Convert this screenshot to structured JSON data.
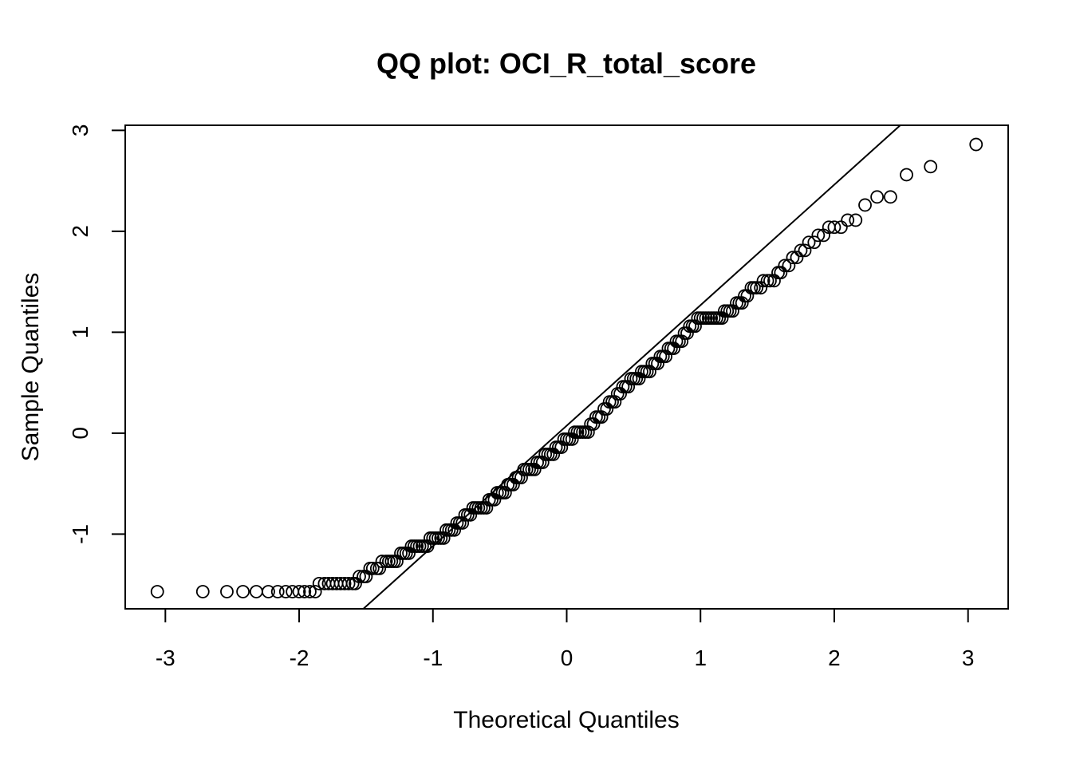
{
  "chart_data": {
    "type": "scatter",
    "title": "QQ plot: OCI_R_total_score",
    "xlabel": "Theoretical Quantiles",
    "ylabel": "Sample Quantiles",
    "xlim": [
      -3.3,
      3.3
    ],
    "ylim": [
      -1.74,
      3.05
    ],
    "xticks": [
      -3,
      -2,
      -1,
      0,
      1,
      2,
      3
    ],
    "yticks": [
      -1,
      0,
      1,
      2,
      3
    ],
    "grid": false,
    "legend": "none",
    "marker": "open-circle",
    "reference_line": {
      "slope": 1.1935,
      "intercept": 0.0743
    },
    "series": [
      {
        "points": [
          [
            -3.06,
            -1.57
          ],
          [
            -2.72,
            -1.57
          ],
          [
            -2.54,
            -1.57
          ],
          [
            -2.42,
            -1.57
          ],
          [
            -2.32,
            -1.57
          ],
          [
            -2.23,
            -1.57
          ],
          [
            -2.16,
            -1.57
          ],
          [
            -2.1,
            -1.57
          ],
          [
            -2.05,
            -1.57
          ],
          [
            -2.0,
            -1.57
          ],
          [
            -1.96,
            -1.57
          ],
          [
            -1.92,
            -1.57
          ],
          [
            -1.88,
            -1.57
          ],
          [
            -1.85,
            -1.49
          ],
          [
            -1.81,
            -1.49
          ],
          [
            -1.78,
            -1.49
          ],
          [
            -1.75,
            -1.49
          ],
          [
            -1.72,
            -1.49
          ],
          [
            -1.69,
            -1.49
          ],
          [
            -1.66,
            -1.49
          ],
          [
            -1.63,
            -1.49
          ],
          [
            -1.6,
            -1.49
          ],
          [
            -1.58,
            -1.49
          ],
          [
            -1.55,
            -1.42
          ],
          [
            -1.52,
            -1.42
          ],
          [
            -1.5,
            -1.42
          ],
          [
            -1.47,
            -1.34
          ],
          [
            -1.45,
            -1.34
          ],
          [
            -1.42,
            -1.34
          ],
          [
            -1.4,
            -1.34
          ],
          [
            -1.38,
            -1.27
          ],
          [
            -1.35,
            -1.27
          ],
          [
            -1.33,
            -1.27
          ],
          [
            -1.31,
            -1.27
          ],
          [
            -1.29,
            -1.27
          ],
          [
            -1.27,
            -1.27
          ],
          [
            -1.24,
            -1.19
          ],
          [
            -1.22,
            -1.19
          ],
          [
            -1.2,
            -1.19
          ],
          [
            -1.18,
            -1.19
          ],
          [
            -1.16,
            -1.12
          ],
          [
            -1.14,
            -1.12
          ],
          [
            -1.12,
            -1.12
          ],
          [
            -1.1,
            -1.12
          ],
          [
            -1.08,
            -1.12
          ],
          [
            -1.06,
            -1.12
          ],
          [
            -1.04,
            -1.12
          ],
          [
            -1.02,
            -1.04
          ],
          [
            -1.0,
            -1.04
          ],
          [
            -0.98,
            -1.04
          ],
          [
            -0.96,
            -1.04
          ],
          [
            -0.94,
            -1.04
          ],
          [
            -0.92,
            -1.04
          ],
          [
            -0.9,
            -0.96
          ],
          [
            -0.88,
            -0.96
          ],
          [
            -0.86,
            -0.96
          ],
          [
            -0.84,
            -0.96
          ],
          [
            -0.82,
            -0.89
          ],
          [
            -0.8,
            -0.89
          ],
          [
            -0.78,
            -0.89
          ],
          [
            -0.76,
            -0.81
          ],
          [
            -0.74,
            -0.81
          ],
          [
            -0.72,
            -0.81
          ],
          [
            -0.7,
            -0.74
          ],
          [
            -0.68,
            -0.74
          ],
          [
            -0.66,
            -0.74
          ],
          [
            -0.64,
            -0.74
          ],
          [
            -0.62,
            -0.74
          ],
          [
            -0.6,
            -0.74
          ],
          [
            -0.58,
            -0.66
          ],
          [
            -0.56,
            -0.66
          ],
          [
            -0.54,
            -0.66
          ],
          [
            -0.52,
            -0.59
          ],
          [
            -0.5,
            -0.59
          ],
          [
            -0.48,
            -0.59
          ],
          [
            -0.46,
            -0.59
          ],
          [
            -0.44,
            -0.51
          ],
          [
            -0.42,
            -0.51
          ],
          [
            -0.4,
            -0.51
          ],
          [
            -0.38,
            -0.44
          ],
          [
            -0.36,
            -0.44
          ],
          [
            -0.34,
            -0.44
          ],
          [
            -0.32,
            -0.36
          ],
          [
            -0.3,
            -0.36
          ],
          [
            -0.28,
            -0.36
          ],
          [
            -0.26,
            -0.36
          ],
          [
            -0.24,
            -0.36
          ],
          [
            -0.22,
            -0.29
          ],
          [
            -0.2,
            -0.29
          ],
          [
            -0.18,
            -0.29
          ],
          [
            -0.16,
            -0.21
          ],
          [
            -0.14,
            -0.21
          ],
          [
            -0.12,
            -0.21
          ],
          [
            -0.1,
            -0.21
          ],
          [
            -0.08,
            -0.14
          ],
          [
            -0.06,
            -0.14
          ],
          [
            -0.04,
            -0.14
          ],
          [
            -0.02,
            -0.06
          ],
          [
            0.0,
            -0.06
          ],
          [
            0.02,
            -0.06
          ],
          [
            0.04,
            -0.06
          ],
          [
            0.06,
            0.01
          ],
          [
            0.08,
            0.01
          ],
          [
            0.1,
            0.01
          ],
          [
            0.12,
            0.01
          ],
          [
            0.14,
            0.01
          ],
          [
            0.16,
            0.01
          ],
          [
            0.18,
            0.09
          ],
          [
            0.2,
            0.09
          ],
          [
            0.22,
            0.16
          ],
          [
            0.24,
            0.16
          ],
          [
            0.26,
            0.16
          ],
          [
            0.28,
            0.24
          ],
          [
            0.3,
            0.24
          ],
          [
            0.32,
            0.31
          ],
          [
            0.34,
            0.31
          ],
          [
            0.36,
            0.31
          ],
          [
            0.38,
            0.39
          ],
          [
            0.4,
            0.39
          ],
          [
            0.42,
            0.46
          ],
          [
            0.44,
            0.46
          ],
          [
            0.46,
            0.46
          ],
          [
            0.48,
            0.54
          ],
          [
            0.5,
            0.54
          ],
          [
            0.52,
            0.54
          ],
          [
            0.54,
            0.54
          ],
          [
            0.56,
            0.61
          ],
          [
            0.58,
            0.61
          ],
          [
            0.6,
            0.61
          ],
          [
            0.62,
            0.61
          ],
          [
            0.64,
            0.69
          ],
          [
            0.66,
            0.69
          ],
          [
            0.68,
            0.69
          ],
          [
            0.7,
            0.76
          ],
          [
            0.72,
            0.76
          ],
          [
            0.74,
            0.76
          ],
          [
            0.76,
            0.84
          ],
          [
            0.78,
            0.84
          ],
          [
            0.8,
            0.84
          ],
          [
            0.82,
            0.91
          ],
          [
            0.84,
            0.91
          ],
          [
            0.86,
            0.91
          ],
          [
            0.88,
            0.99
          ],
          [
            0.9,
            0.99
          ],
          [
            0.92,
            1.06
          ],
          [
            0.94,
            1.06
          ],
          [
            0.96,
            1.06
          ],
          [
            0.98,
            1.14
          ],
          [
            1.0,
            1.14
          ],
          [
            1.02,
            1.14
          ],
          [
            1.04,
            1.14
          ],
          [
            1.06,
            1.14
          ],
          [
            1.08,
            1.14
          ],
          [
            1.1,
            1.14
          ],
          [
            1.12,
            1.14
          ],
          [
            1.14,
            1.14
          ],
          [
            1.16,
            1.14
          ],
          [
            1.18,
            1.21
          ],
          [
            1.2,
            1.21
          ],
          [
            1.22,
            1.21
          ],
          [
            1.24,
            1.21
          ],
          [
            1.27,
            1.29
          ],
          [
            1.29,
            1.29
          ],
          [
            1.31,
            1.29
          ],
          [
            1.33,
            1.36
          ],
          [
            1.35,
            1.36
          ],
          [
            1.38,
            1.44
          ],
          [
            1.4,
            1.44
          ],
          [
            1.42,
            1.44
          ],
          [
            1.45,
            1.44
          ],
          [
            1.47,
            1.51
          ],
          [
            1.5,
            1.51
          ],
          [
            1.52,
            1.51
          ],
          [
            1.55,
            1.51
          ],
          [
            1.58,
            1.59
          ],
          [
            1.6,
            1.59
          ],
          [
            1.63,
            1.66
          ],
          [
            1.66,
            1.66
          ],
          [
            1.69,
            1.74
          ],
          [
            1.72,
            1.74
          ],
          [
            1.75,
            1.81
          ],
          [
            1.78,
            1.81
          ],
          [
            1.81,
            1.89
          ],
          [
            1.85,
            1.89
          ],
          [
            1.88,
            1.96
          ],
          [
            1.92,
            1.96
          ],
          [
            1.96,
            2.04
          ],
          [
            2.0,
            2.04
          ],
          [
            2.05,
            2.04
          ],
          [
            2.1,
            2.11
          ],
          [
            2.16,
            2.11
          ],
          [
            2.23,
            2.26
          ],
          [
            2.32,
            2.34
          ],
          [
            2.42,
            2.34
          ],
          [
            2.54,
            2.56
          ],
          [
            2.72,
            2.64
          ],
          [
            3.06,
            2.86
          ]
        ]
      }
    ]
  }
}
